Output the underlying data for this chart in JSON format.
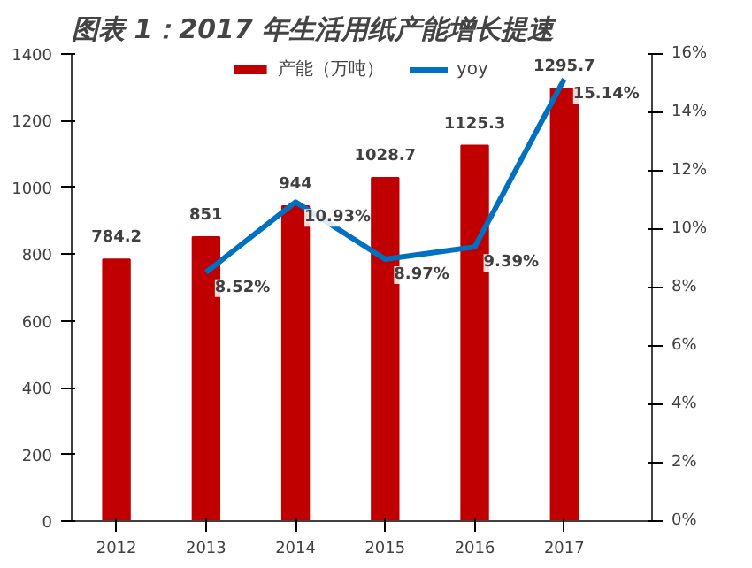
{
  "chart_data": {
    "type": "bar",
    "title": "图表 1：2017 年生活用纸产能增长提速",
    "categories": [
      "2012",
      "2013",
      "2014",
      "2015",
      "2016",
      "2017"
    ],
    "series": [
      {
        "name": "产能（万吨）",
        "color": "#c00000",
        "values": [
          784.2,
          851,
          944,
          1028.7,
          1125.3,
          1295.7
        ],
        "value_labels": [
          "784.2",
          "851",
          "944",
          "1028.7",
          "1125.3",
          "1295.7"
        ]
      },
      {
        "name": "yoy",
        "type": "line",
        "axis": "y2",
        "color": "#0070c0",
        "values": [
          null,
          8.52,
          10.93,
          8.97,
          9.39,
          15.14
        ],
        "value_labels": [
          null,
          "8.52%",
          "10.93%",
          "8.97%",
          "9.39%",
          "15.14%"
        ]
      }
    ],
    "ylim": [
      0,
      1400
    ],
    "yticks": [
      0,
      200,
      400,
      600,
      800,
      1000,
      1200,
      1400
    ],
    "y2lim": [
      0,
      16
    ],
    "y2ticks": [
      {
        "value": 0,
        "label": "0%"
      },
      {
        "value": 2,
        "label": "2%"
      },
      {
        "value": 4,
        "label": "4%"
      },
      {
        "value": 6,
        "label": "6%"
      },
      {
        "value": 8,
        "label": "8%"
      },
      {
        "value": 10,
        "label": "10%"
      },
      {
        "value": 12,
        "label": "12%"
      },
      {
        "value": 14,
        "label": "14%"
      },
      {
        "value": 16,
        "label": "16%"
      }
    ],
    "legend": "top",
    "grid": false
  }
}
